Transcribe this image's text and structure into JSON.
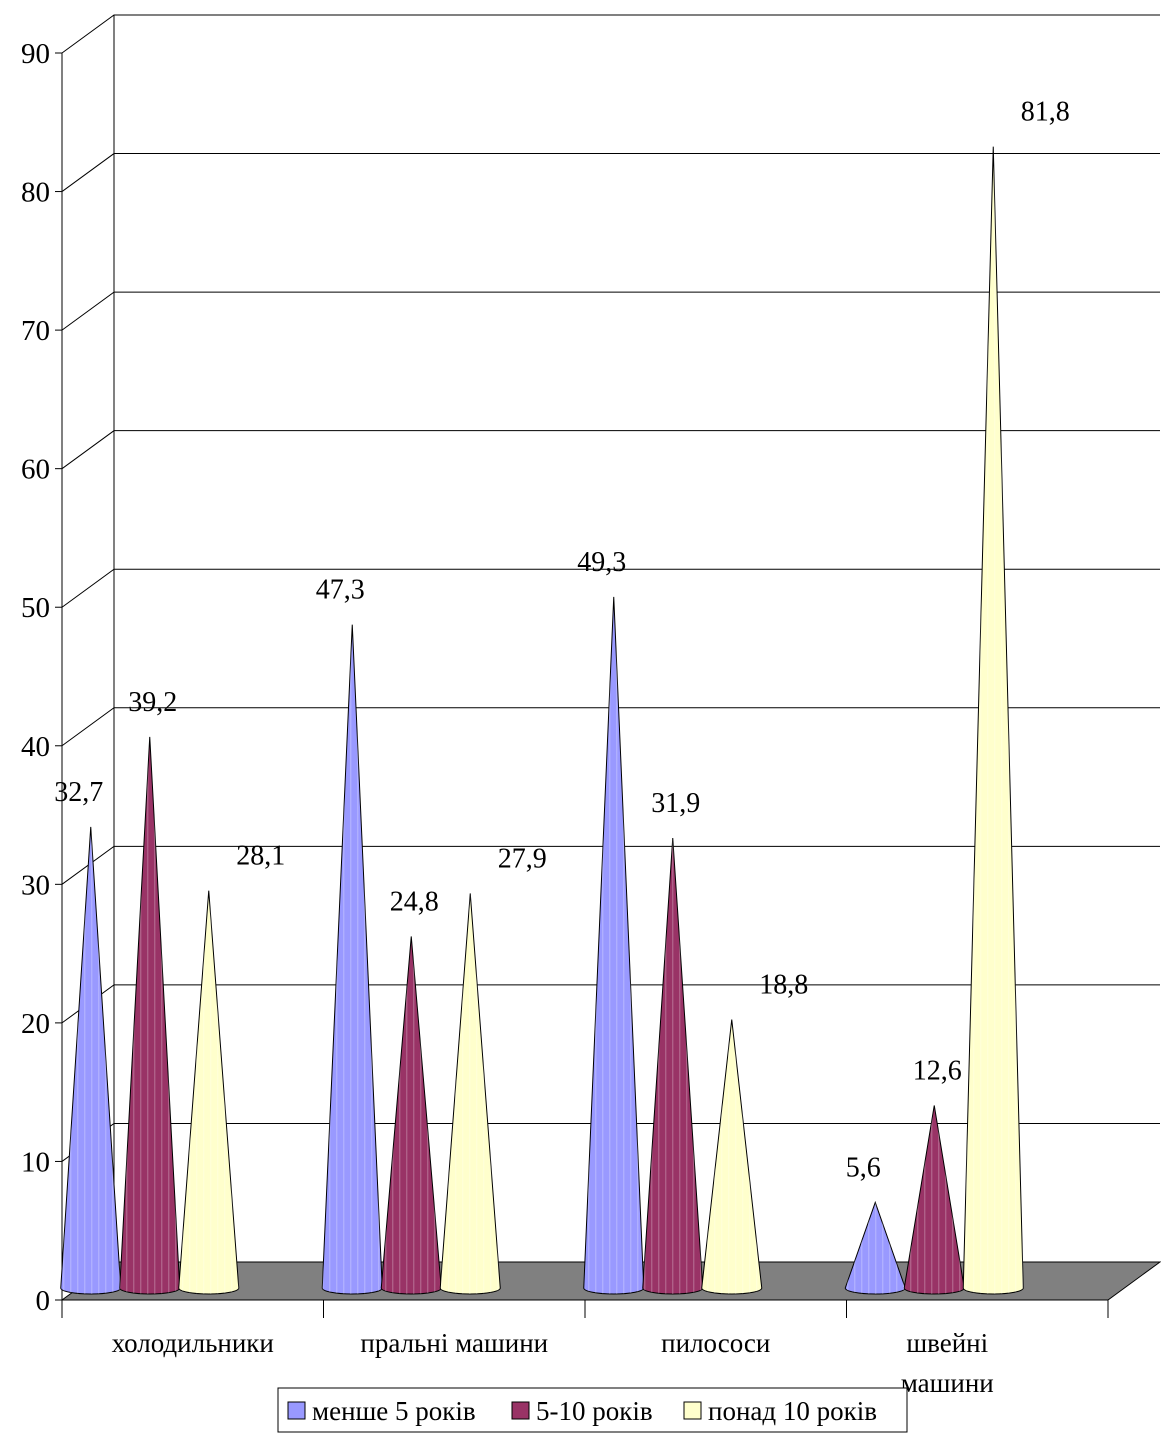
{
  "chart_data": {
    "type": "bar",
    "shape": "cone-3d",
    "categories": [
      "холодильники",
      "пральні машини",
      "пилососи",
      "швейні машини"
    ],
    "category_label_lines": [
      [
        "холодильники"
      ],
      [
        "пральні машини"
      ],
      [
        "пилососи"
      ],
      [
        "швейні",
        "машини"
      ]
    ],
    "series": [
      {
        "name": "менше 5 років",
        "color": "#9999ff",
        "values": [
          32.7,
          47.3,
          49.3,
          5.6
        ]
      },
      {
        "name": "5-10 років",
        "color": "#993366",
        "values": [
          39.2,
          24.8,
          31.9,
          12.6
        ]
      },
      {
        "name": "понад 10 років",
        "color": "#ffffcc",
        "values": [
          28.1,
          27.9,
          18.8,
          81.8
        ]
      }
    ],
    "data_labels": [
      [
        "32,7",
        "47,3",
        "49,3",
        "5,6"
      ],
      [
        "39,2",
        "24,8",
        "31,9",
        "12,6"
      ],
      [
        "28,1",
        "27,9",
        "18,8",
        "81,8"
      ]
    ],
    "ylim": [
      0,
      90
    ],
    "yticks": [
      0,
      10,
      20,
      30,
      40,
      50,
      60,
      70,
      80,
      90
    ],
    "grid": true,
    "floor_color": "#808080",
    "legend_position": "bottom",
    "title": "",
    "xlabel": "",
    "ylabel": ""
  }
}
